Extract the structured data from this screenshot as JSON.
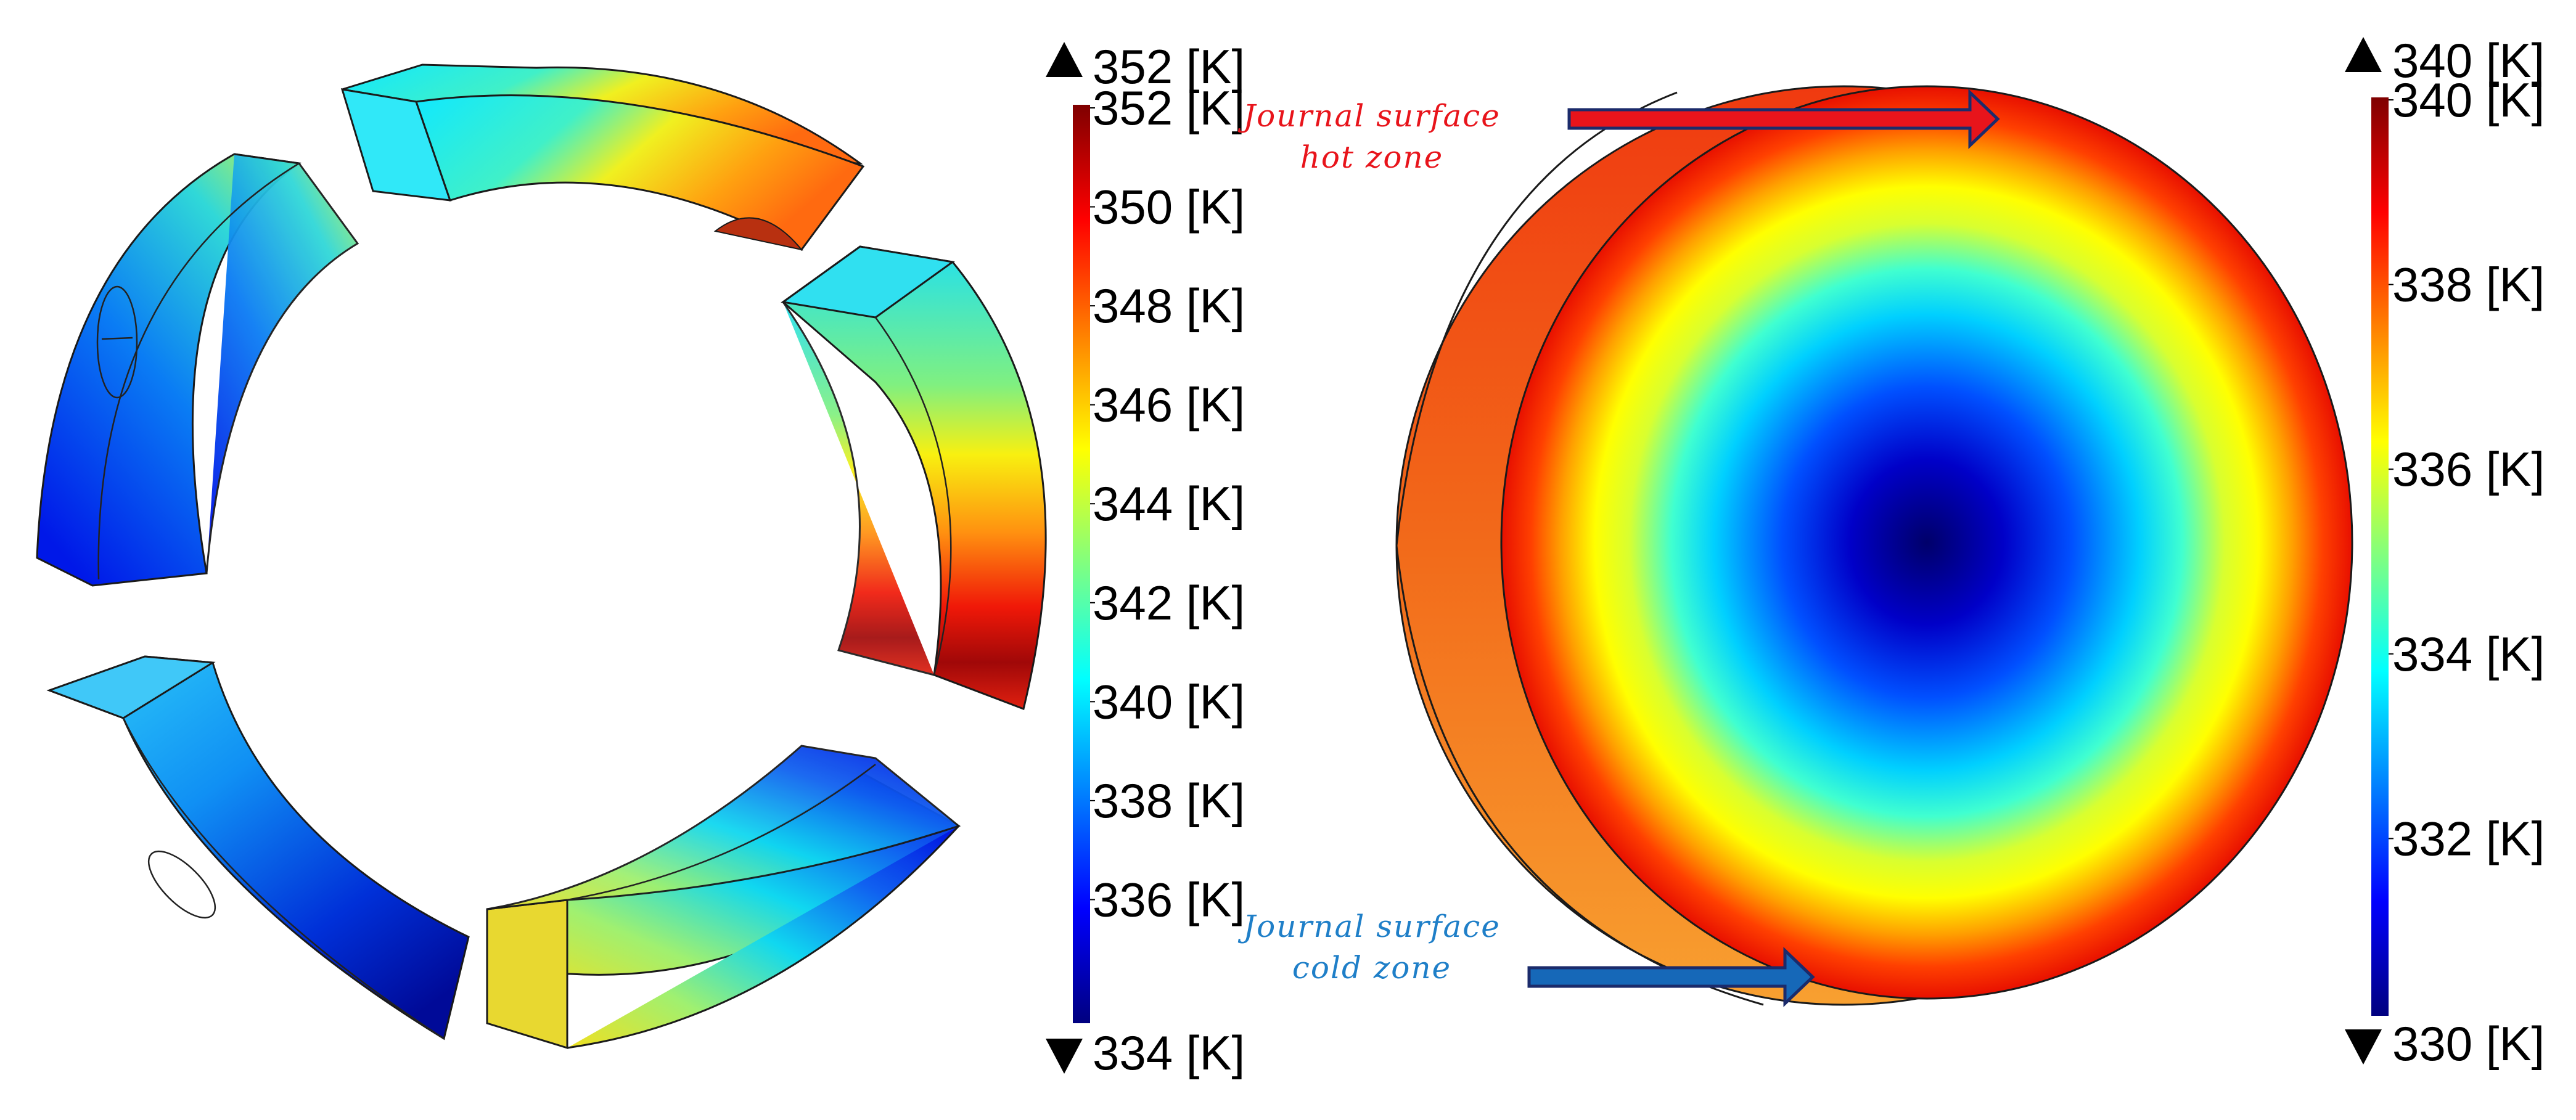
{
  "colors": {
    "jet": [
      "#00007f",
      "#0000ff",
      "#0080ff",
      "#00ffff",
      "#80ff80",
      "#ffff00",
      "#ff8000",
      "#ff0000",
      "#7f0000"
    ],
    "hot_note": "#e8141b",
    "cold_note": "#1f7fc8",
    "hot_arrow_fill": "#e8141b",
    "cold_arrow_fill": "#1668b8",
    "arrow_stroke": "#1b2b6b"
  },
  "left_colorbar": {
    "max_label": "352 [K]",
    "min_label": "334 [K]",
    "ticks": [
      {
        "value": 352,
        "label": "352 [K]"
      },
      {
        "value": 350,
        "label": "350 [K]"
      },
      {
        "value": 348,
        "label": "348 [K]"
      },
      {
        "value": 346,
        "label": "346 [K]"
      },
      {
        "value": 344,
        "label": "344 [K]"
      },
      {
        "value": 342,
        "label": "342 [K]"
      },
      {
        "value": 340,
        "label": "340 [K]"
      },
      {
        "value": 338,
        "label": "338 [K]"
      },
      {
        "value": 336,
        "label": "336 [K]"
      }
    ],
    "range": [
      334,
      352
    ]
  },
  "right_colorbar": {
    "max_label": "340 [K]",
    "min_label": "330 [K]",
    "ticks": [
      {
        "value": 340,
        "label": "340 [K]"
      },
      {
        "value": 338,
        "label": "338 [K]"
      },
      {
        "value": 336,
        "label": "336 [K]"
      },
      {
        "value": 334,
        "label": "334 [K]"
      },
      {
        "value": 332,
        "label": "332 [K]"
      }
    ],
    "range": [
      330,
      340
    ]
  },
  "annotations": {
    "hot_line1": "Journal surface",
    "hot_line2": "hot zone",
    "cold_line1": "Journal surface",
    "cold_line2": "cold zone"
  }
}
